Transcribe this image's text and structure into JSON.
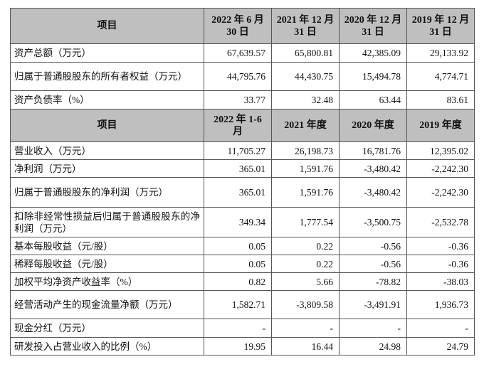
{
  "header1": {
    "item": "项目",
    "cols": [
      "2022 年 6 月 30 日",
      "2021 年 12 月 31 日",
      "2020 年 12 月 31 日",
      "2019 年 12 月 31 日"
    ]
  },
  "balance_rows": [
    {
      "label": "资产总额（万元）",
      "values": [
        "67,639.57",
        "65,800.81",
        "42,385.09",
        "29,133.92"
      ]
    },
    {
      "label": "归属于普通股股东的所有者权益（万元）",
      "values": [
        "44,795.76",
        "44,430.75",
        "15,494.78",
        "4,774.71"
      ]
    },
    {
      "label": "资产负债率（%）",
      "values": [
        "33.77",
        "32.48",
        "63.44",
        "83.61"
      ]
    }
  ],
  "header2": {
    "item": "项目",
    "cols": [
      "2022 年 1-6 月",
      "2021 年度",
      "2020 年度",
      "2019 年度"
    ]
  },
  "income_rows": [
    {
      "label": "营业收入（万元）",
      "values": [
        "11,705.27",
        "26,198.73",
        "16,781.76",
        "12,395.02"
      ]
    },
    {
      "label": "净利润（万元）",
      "values": [
        "365.01",
        "1,591.76",
        "-3,480.42",
        "-2,242.30"
      ]
    },
    {
      "label": "归属于普通股股东的净利润（万元）",
      "values": [
        "365.01",
        "1,591.76",
        "-3,480.42",
        "-2,242.30"
      ]
    },
    {
      "label": "扣除非经常性损益后归属于普通股股东的净利润（万元）",
      "values": [
        "349.34",
        "1,777.54",
        "-3,500.75",
        "-2,532.78"
      ]
    },
    {
      "label": "基本每股收益（元/股）",
      "values": [
        "0.05",
        "0.22",
        "-0.56",
        "-0.36"
      ]
    },
    {
      "label": "稀释每股收益（元/股）",
      "values": [
        "0.05",
        "0.22",
        "-0.56",
        "-0.36"
      ]
    },
    {
      "label": "加权平均净资产收益率（%）",
      "values": [
        "0.82",
        "5.66",
        "-78.82",
        "-38.03"
      ]
    },
    {
      "label": "经营活动产生的现金流量净额（万元）",
      "values": [
        "1,582.71",
        "-3,809.58",
        "-3,491.91",
        "1,936.73"
      ]
    },
    {
      "label": "现金分红（万元）",
      "values": [
        "-",
        "-",
        "-",
        "-"
      ]
    },
    {
      "label": "研发投入占营业收入的比例（%）",
      "values": [
        "19.95",
        "16.44",
        "24.98",
        "24.79"
      ]
    }
  ]
}
